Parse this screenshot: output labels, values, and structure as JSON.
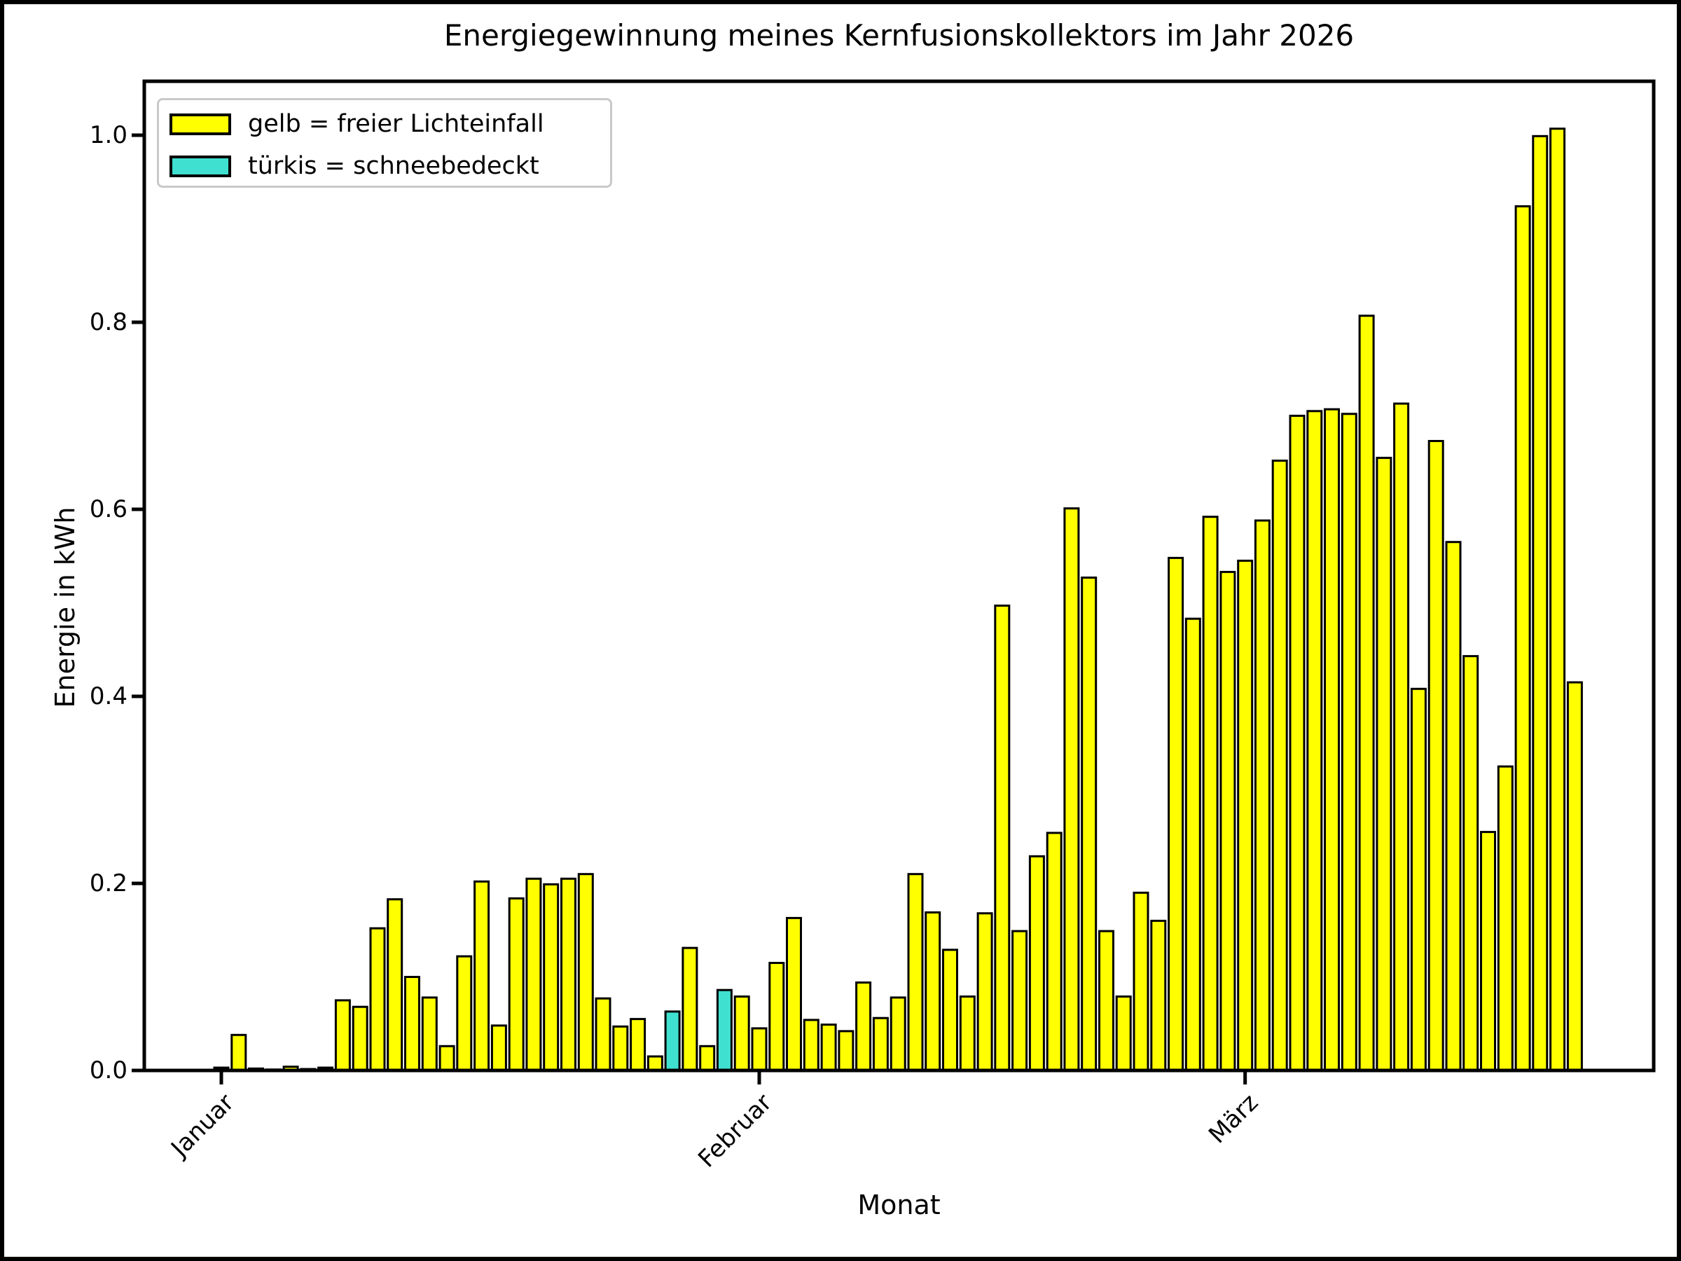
{
  "chart_data": {
    "type": "bar",
    "title": "Energiegewinnung meines Kernfusionskollektors im Jahr 2026",
    "xlabel": "Monat",
    "ylabel": "Energie in kWh",
    "ylim": [
      0,
      1.06
    ],
    "yticks": [
      0.0,
      0.2,
      0.4,
      0.6,
      0.8,
      1.0
    ],
    "ytick_labels": [
      "0.0",
      "0.2",
      "0.4",
      "0.6",
      "0.8",
      "1.0"
    ],
    "xticks": [
      {
        "label": "Januar",
        "day": 1
      },
      {
        "label": "Februar",
        "day": 32
      },
      {
        "label": "März",
        "day": 60
      }
    ],
    "grid": false,
    "legend_position": "upper left",
    "colors": {
      "default": "#ffff00",
      "snow": "#40e0d0",
      "edge": "#000000"
    },
    "legend": [
      {
        "label": "gelb = freier Lichteinfall",
        "color_key": "default"
      },
      {
        "label": "türkis = schneebedeckt",
        "color_key": "snow"
      }
    ],
    "values": [
      0.003,
      0.038,
      0.002,
      0.001,
      0.004,
      0.0015,
      0.003,
      0.075,
      0.068,
      0.152,
      0.183,
      0.1,
      0.078,
      0.026,
      0.122,
      0.202,
      0.048,
      0.184,
      0.205,
      0.199,
      0.205,
      0.21,
      0.077,
      0.047,
      0.055,
      0.015,
      0.063,
      0.131,
      0.026,
      0.086,
      0.079,
      0.045,
      0.115,
      0.163,
      0.054,
      0.049,
      0.042,
      0.094,
      0.056,
      0.078,
      0.21,
      0.169,
      0.129,
      0.079,
      0.168,
      0.497,
      0.149,
      0.229,
      0.254,
      0.601,
      0.527,
      0.149,
      0.079,
      0.19,
      0.16,
      0.548,
      0.483,
      0.592,
      0.533,
      0.545,
      0.588,
      0.652,
      0.7,
      0.705,
      0.707,
      0.702,
      0.807,
      0.655,
      0.713,
      0.408,
      0.673,
      0.565,
      0.443,
      0.255,
      0.325,
      0.924,
      0.999,
      1.007,
      0.415
    ],
    "snow_day_indices": [
      7,
      27,
      30
    ]
  }
}
